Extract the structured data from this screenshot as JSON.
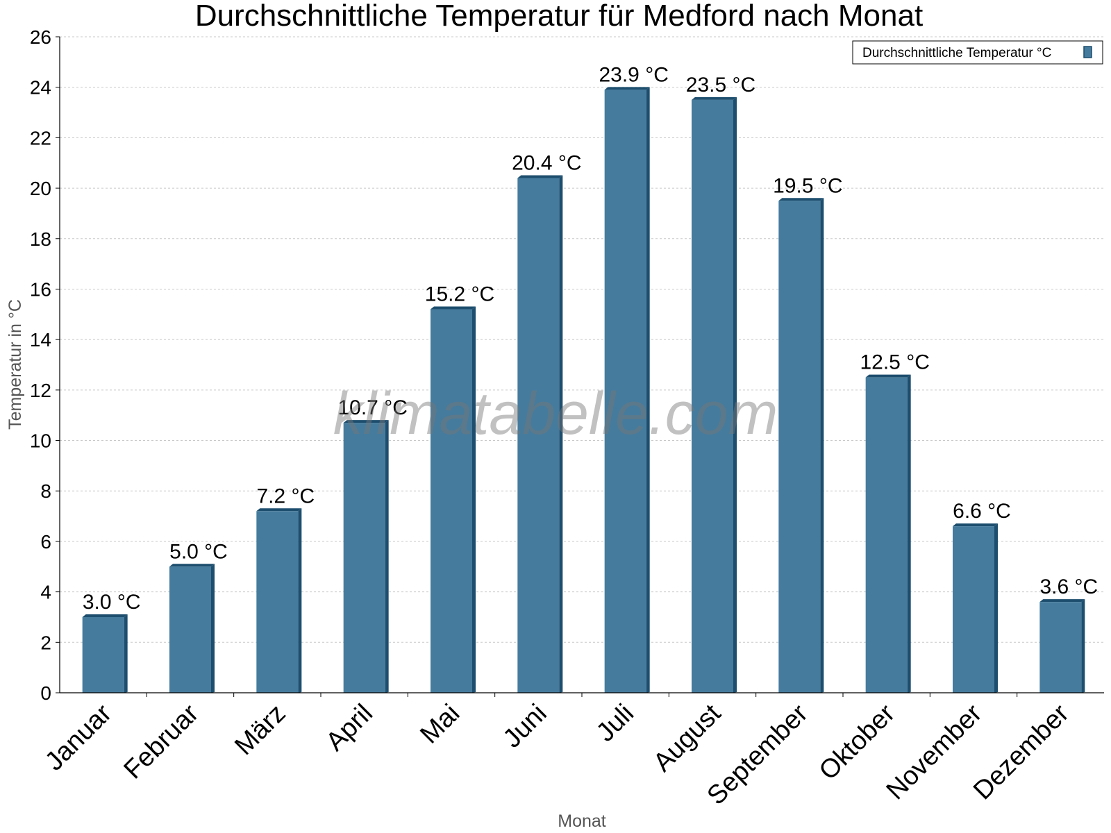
{
  "watermark": "klimatabelle.com",
  "colors": {
    "bar": "#457b9d",
    "bar_dark": "#1d4e6e",
    "grid": "#c8c8c8"
  },
  "chart_data": {
    "type": "bar",
    "title": "Durchschnittliche Temperatur für Medford nach Monat",
    "xlabel": "Monat",
    "ylabel": "Temperatur in °C",
    "ylim": [
      0,
      26
    ],
    "yticks": [
      0,
      2,
      4,
      6,
      8,
      10,
      12,
      14,
      16,
      18,
      20,
      22,
      24,
      26
    ],
    "grid": true,
    "legend_position": "top-right",
    "categories": [
      "Januar",
      "Februar",
      "März",
      "April",
      "Mai",
      "Juni",
      "Juli",
      "August",
      "September",
      "Oktober",
      "November",
      "Dezember"
    ],
    "series": [
      {
        "name": "Durchschnittliche Temperatur °C",
        "values": [
          3.0,
          5.0,
          7.2,
          10.7,
          15.2,
          20.4,
          23.9,
          23.5,
          19.5,
          12.5,
          6.6,
          3.6
        ],
        "labels": [
          "3.0 °C",
          "5.0 °C",
          "7.2 °C",
          "10.7 °C",
          "15.2 °C",
          "20.4 °C",
          "23.9 °C",
          "23.5 °C",
          "19.5 °C",
          "12.5 °C",
          "6.6 °C",
          "3.6 °C"
        ]
      }
    ]
  }
}
